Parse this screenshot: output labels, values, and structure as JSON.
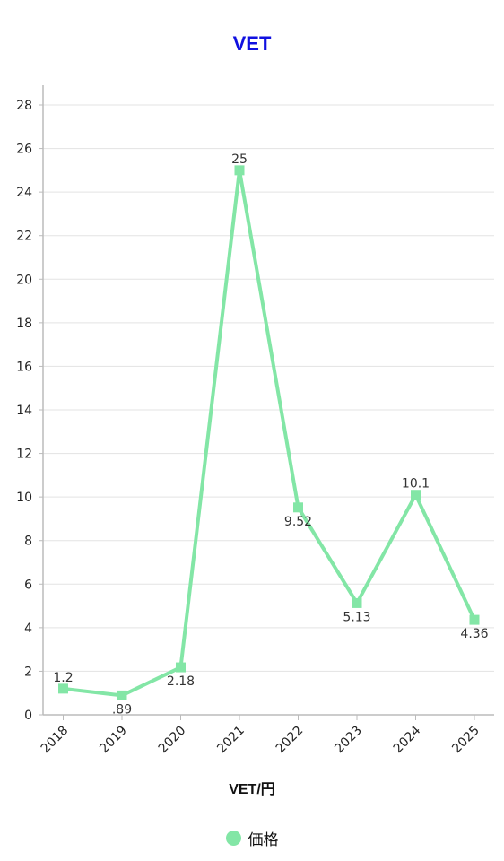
{
  "chart_data": {
    "type": "line",
    "title": "VET",
    "xlabel": "VET/円",
    "ylabel": "",
    "categories": [
      "2018",
      "2019",
      "2020",
      "2021",
      "2022",
      "2023",
      "2024",
      "2025"
    ],
    "ylim": [
      0,
      28
    ],
    "yticks": [
      "0",
      "2",
      "4",
      "6",
      "8",
      "10",
      "12",
      "14",
      "16",
      "18",
      "20",
      "22",
      "24",
      "26",
      "28"
    ],
    "grid": true,
    "legend_position": "bottom",
    "series": [
      {
        "name": "価格",
        "values": [
          1.2,
          0.89,
          2.18,
          25,
          9.52,
          5.13,
          10.1,
          4.36
        ],
        "labels": [
          "1.2",
          ".89",
          "2.18",
          "25",
          "9.52",
          "5.13",
          "10.1",
          "4.36"
        ],
        "color": "#83e6a6"
      }
    ],
    "colors": {
      "title": "#1010e0",
      "grid": "#e3e3e3",
      "axis": "#bbbbbb"
    }
  }
}
